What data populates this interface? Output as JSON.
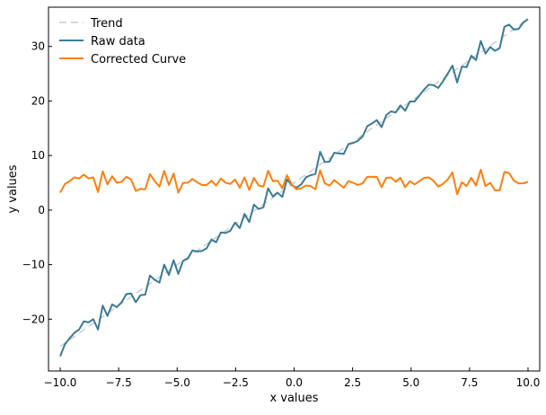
{
  "chart_data": {
    "type": "line",
    "title": "",
    "xlabel": "x values",
    "ylabel": "y values",
    "xlim": [
      -10.5,
      10.5
    ],
    "ylim": [
      -29.5,
      37.2
    ],
    "x_ticks": [
      -10.0,
      -7.5,
      -5.0,
      -2.5,
      0.0,
      2.5,
      5.0,
      7.5,
      10.0
    ],
    "x_tick_labels": [
      "−10.0",
      "−7.5",
      "−5.0",
      "−2.5",
      "0.0",
      "2.5",
      "5.0",
      "7.5",
      "10.0"
    ],
    "y_ticks": [
      -20,
      -10,
      0,
      10,
      20,
      30
    ],
    "y_tick_labels": [
      "−20",
      "−10",
      "0",
      "10",
      "20",
      "30"
    ],
    "grid": false,
    "legend_position": "top-left",
    "x_range": {
      "start": -10.0,
      "end": 10.0,
      "count": 100
    },
    "series": [
      {
        "name": "Trend",
        "style": "dashed",
        "color": "#cccccc",
        "values": [
          -25.0,
          35.0
        ]
      },
      {
        "name": "Raw data",
        "style": "solid",
        "color": "#3b7b94",
        "values": [
          -26.8,
          -24.6,
          -23.5,
          -22.5,
          -21.9,
          -20.4,
          -20.6,
          -20.0,
          -21.9,
          -17.5,
          -19.4,
          -17.3,
          -17.8,
          -16.9,
          -15.4,
          -15.3,
          -16.9,
          -15.6,
          -15.5,
          -12.0,
          -12.8,
          -13.3,
          -10.0,
          -11.9,
          -9.2,
          -11.7,
          -9.3,
          -8.9,
          -7.4,
          -7.6,
          -7.5,
          -7.0,
          -5.4,
          -5.9,
          -4.1,
          -4.2,
          -3.8,
          -2.3,
          -3.3,
          -0.7,
          -2.2,
          1.0,
          0.2,
          0.5,
          4.0,
          2.5,
          3.2,
          2.4,
          5.6,
          4.6,
          4.1,
          4.7,
          6.0,
          6.4,
          6.6,
          10.7,
          8.8,
          8.9,
          10.5,
          10.4,
          10.3,
          12.1,
          12.3,
          12.7,
          13.5,
          15.4,
          15.9,
          16.5,
          15.2,
          17.4,
          18.1,
          17.9,
          19.2,
          18.2,
          19.9,
          19.9,
          21.0,
          22.1,
          23.0,
          22.9,
          22.4,
          23.6,
          25.0,
          26.5,
          23.4,
          26.3,
          26.2,
          28.3,
          27.5,
          31.0,
          28.7,
          29.9,
          29.2,
          29.7,
          33.6,
          34.0,
          33.1,
          33.2,
          34.4,
          35.0
        ]
      },
      {
        "name": "Corrected Curve",
        "style": "solid",
        "color": "#ff7f0e",
        "values": [
          3.2,
          4.8,
          5.3,
          6.0,
          5.8,
          6.5,
          5.8,
          6.0,
          3.3,
          7.1,
          4.7,
          6.2,
          5.0,
          5.2,
          6.1,
          5.6,
          3.5,
          3.9,
          3.8,
          6.6,
          5.3,
          4.3,
          7.2,
          4.6,
          6.7,
          3.2,
          5.0,
          5.0,
          5.7,
          5.1,
          4.6,
          4.6,
          5.4,
          4.5,
          5.8,
          5.0,
          4.8,
          5.6,
          4.1,
          6.0,
          3.7,
          5.9,
          4.5,
          4.3,
          7.2,
          5.3,
          5.4,
          4.0,
          6.4,
          4.7,
          3.8,
          4.0,
          4.5,
          4.4,
          3.8,
          7.3,
          4.9,
          4.5,
          5.5,
          4.8,
          4.1,
          5.3,
          5.0,
          4.6,
          4.9,
          6.1,
          6.1,
          6.1,
          4.2,
          5.9,
          6.0,
          5.2,
          5.9,
          4.2,
          5.3,
          4.7,
          5.3,
          5.9,
          6.0,
          5.4,
          4.3,
          4.8,
          5.6,
          6.9,
          2.9,
          5.1,
          4.4,
          5.9,
          4.5,
          7.4,
          4.4,
          5.0,
          3.6,
          3.6,
          7.0,
          6.8,
          5.4,
          4.9,
          4.9,
          5.2
        ]
      }
    ]
  }
}
